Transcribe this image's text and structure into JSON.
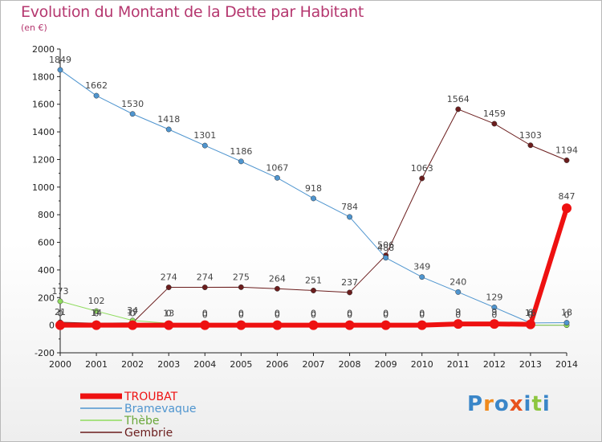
{
  "title": "Evolution du Montant de la Dette par Habitant",
  "subtitle": "(en €)",
  "logo": {
    "text": "Proxiti",
    "colors": [
      "#3a86c8",
      "#f08a1c",
      "#3a86c8",
      "#e8521e",
      "#3a86c8",
      "#8dc63f",
      "#3a86c8"
    ]
  },
  "chart_data": {
    "type": "line",
    "title": "Evolution du Montant de la Dette par Habitant",
    "ylabel": "(en €)",
    "xlabel": "",
    "x": [
      2000,
      2001,
      2002,
      2003,
      2004,
      2005,
      2006,
      2007,
      2008,
      2009,
      2010,
      2011,
      2012,
      2013,
      2014
    ],
    "ylim": [
      -200,
      2000
    ],
    "yticks": [
      -200,
      0,
      200,
      400,
      600,
      800,
      1000,
      1200,
      1400,
      1600,
      1800,
      2000
    ],
    "grid": false,
    "legend_position": "bottom-left",
    "series": [
      {
        "name": "Gembrie",
        "color": "#6b1d1d",
        "marker_color": "#6b1d1d",
        "line_width": 1,
        "values": [
          21,
          14,
          17,
          274,
          274,
          275,
          264,
          251,
          237,
          506,
          1063,
          1564,
          1459,
          1303,
          1194
        ],
        "labels": [
          "21",
          "14",
          "17",
          "274",
          "274",
          "275",
          "264",
          "251",
          "237",
          "506",
          "1063",
          "1564",
          "1459",
          "1303",
          "1194"
        ]
      },
      {
        "name": "Thèbe",
        "color": "#8fdc5e",
        "marker_color": "#8fdc5e",
        "line_width": 1,
        "values": [
          173,
          102,
          34,
          13,
          0,
          0,
          0,
          0,
          0,
          0,
          0,
          0,
          0,
          0,
          0
        ],
        "labels": [
          "173",
          "102",
          "34",
          "13",
          "0",
          "0",
          "0",
          "0",
          "0",
          "0",
          "0",
          "0",
          "0",
          "0",
          "0"
        ]
      },
      {
        "name": "Bramevaque",
        "color": "#4f95cf",
        "marker_color": "#4f95cf",
        "line_width": 1,
        "values": [
          1849,
          1662,
          1530,
          1418,
          1301,
          1186,
          1067,
          918,
          784,
          488,
          349,
          240,
          129,
          16,
          18
        ],
        "labels": [
          "1849",
          "1662",
          "1530",
          "1418",
          "1301",
          "1186",
          "1067",
          "918",
          "784",
          "488",
          "349",
          "240",
          "129",
          "16",
          "18"
        ]
      },
      {
        "name": "TROUBAT",
        "color": "#ee1111",
        "marker_color": "#ee1111",
        "line_width": 6,
        "values": [
          0,
          0,
          0,
          0,
          0,
          0,
          0,
          0,
          0,
          0,
          0,
          9,
          9,
          6,
          847
        ],
        "labels": [
          "0",
          "0",
          "0",
          "0",
          "0",
          "0",
          "0",
          "0",
          "0",
          "0",
          "0",
          "9",
          "9",
          "6",
          "847"
        ]
      }
    ],
    "legend_order": [
      "TROUBAT",
      "Bramevaque",
      "Thèbe",
      "Gembrie"
    ]
  }
}
